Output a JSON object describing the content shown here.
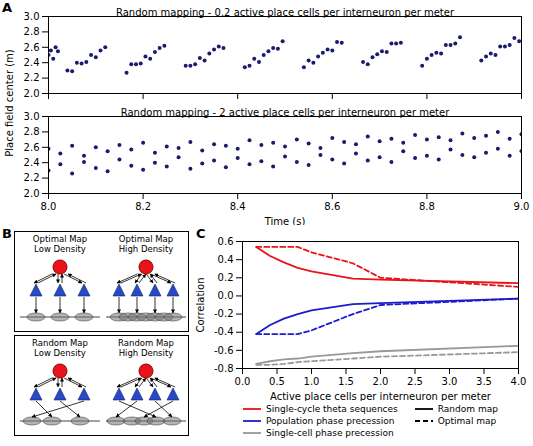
{
  "chart_data": [
    {
      "panel": "A",
      "type": "scatter",
      "title": "Random mapping - 0.2 active place cells per interneuron per meter",
      "ylabel": "Place field center (m)",
      "color": "#1a1a70",
      "tick_labels": "y",
      "xlim": [
        8,
        9
      ],
      "ylim": [
        2,
        3
      ],
      "xticks": [
        {
          "value": 8,
          "label": "8.0"
        },
        8.2,
        8.4,
        8.6,
        8.8,
        {
          "value": 9,
          "label": "9.0"
        }
      ],
      "yticks": [
        {
          "value": 2,
          "label": "2.0"
        },
        2.2,
        2.4,
        2.6,
        2.8,
        {
          "value": 3,
          "label": "3.0"
        }
      ],
      "x": [
        8,
        8.005,
        8.01,
        8.015,
        8.02,
        8.04,
        8.05,
        8.06,
        8.07,
        8.08,
        8.09,
        8.1,
        8.11,
        8.12,
        8.165,
        8.175,
        8.185,
        8.195,
        8.205,
        8.215,
        8.225,
        8.235,
        8.245,
        8.29,
        8.3,
        8.31,
        8.32,
        8.33,
        8.34,
        8.35,
        8.36,
        8.37,
        8.415,
        8.425,
        8.435,
        8.445,
        8.455,
        8.465,
        8.475,
        8.485,
        8.495,
        8.54,
        8.55,
        8.56,
        8.57,
        8.58,
        8.59,
        8.6,
        8.61,
        8.62,
        8.665,
        8.675,
        8.685,
        8.695,
        8.705,
        8.715,
        8.725,
        8.735,
        8.745,
        8.79,
        8.8,
        8.81,
        8.82,
        8.83,
        8.84,
        8.85,
        8.86,
        8.87,
        8.915,
        8.925,
        8.935,
        8.945,
        8.955,
        8.965,
        8.975,
        8.985,
        8.995
      ],
      "values": [
        2.5,
        2.56,
        2.45,
        2.6,
        2.55,
        2.3,
        2.29,
        2.4,
        2.39,
        2.41,
        2.5,
        2.47,
        2.56,
        2.6,
        2.27,
        2.38,
        2.38,
        2.39,
        2.48,
        2.45,
        2.54,
        2.59,
        2.62,
        2.36,
        2.36,
        2.38,
        2.46,
        2.43,
        2.52,
        2.57,
        2.61,
        2.59,
        2.34,
        2.36,
        2.45,
        2.41,
        2.5,
        2.55,
        2.59,
        2.58,
        2.68,
        2.34,
        2.43,
        2.4,
        2.48,
        2.53,
        2.57,
        2.56,
        2.67,
        2.66,
        2.41,
        2.38,
        2.47,
        2.51,
        2.55,
        2.54,
        2.65,
        2.65,
        2.66,
        2.36,
        2.45,
        2.5,
        2.53,
        2.52,
        2.63,
        2.63,
        2.65,
        2.73,
        2.43,
        2.48,
        2.52,
        2.5,
        2.61,
        2.61,
        2.63,
        2.72,
        2.68
      ]
    },
    {
      "type": "scatter",
      "title": "Random mapping - 2 active place cells per interneuron per meter",
      "xlabel": "Time (s)",
      "color": "#1a1a70",
      "xlim": [
        8,
        9
      ],
      "ylim": [
        2,
        3
      ],
      "xticks": [
        {
          "value": 8,
          "label": "8.0"
        },
        8.2,
        8.4,
        8.6,
        8.8,
        {
          "value": 9,
          "label": "9.0"
        }
      ],
      "yticks": [
        {
          "value": 2,
          "label": "2.0"
        },
        2.2,
        2.4,
        2.6,
        2.8,
        {
          "value": 3,
          "label": "3.0"
        }
      ],
      "x": [
        8,
        8.025,
        8.05,
        8.075,
        8.1,
        8.125,
        8.15,
        8.175,
        8.2,
        8.225,
        8.25,
        8.275,
        8.3,
        8.325,
        8.35,
        8.375,
        8.4,
        8.425,
        8.45,
        8.475,
        8.5,
        8.525,
        8.55,
        8.575,
        8.6,
        8.625,
        8.65,
        8.675,
        8.7,
        8.725,
        8.75,
        8.775,
        8.8,
        8.825,
        8.85,
        8.875,
        8.9,
        8.925,
        8.95,
        8.975,
        9,
        8,
        8.025,
        8.05,
        8.075,
        8.1,
        8.125,
        8.15,
        8.175,
        8.2,
        8.225,
        8.25,
        8.275,
        8.3,
        8.325,
        8.35,
        8.375,
        8.4,
        8.425,
        8.45,
        8.475,
        8.5,
        8.525,
        8.55,
        8.575,
        8.6,
        8.625,
        8.65,
        8.675,
        8.7,
        8.725,
        8.75,
        8.775,
        8.8,
        8.825,
        8.85,
        8.875,
        8.9,
        8.925,
        8.95,
        8.975,
        9
      ],
      "values": [
        2.3,
        2.38,
        2.26,
        2.41,
        2.33,
        2.29,
        2.44,
        2.36,
        2.31,
        2.4,
        2.35,
        2.47,
        2.32,
        2.39,
        2.43,
        2.34,
        2.46,
        2.38,
        2.42,
        2.35,
        2.48,
        2.41,
        2.37,
        2.5,
        2.44,
        2.39,
        2.52,
        2.43,
        2.47,
        2.41,
        2.55,
        2.46,
        2.49,
        2.44,
        2.57,
        2.5,
        2.47,
        2.53,
        2.58,
        2.49,
        2.55,
        2.58,
        2.52,
        2.62,
        2.49,
        2.6,
        2.55,
        2.63,
        2.57,
        2.66,
        2.53,
        2.61,
        2.59,
        2.67,
        2.56,
        2.64,
        2.62,
        2.58,
        2.69,
        2.63,
        2.66,
        2.61,
        2.7,
        2.65,
        2.59,
        2.72,
        2.67,
        2.64,
        2.74,
        2.68,
        2.71,
        2.66,
        2.76,
        2.7,
        2.73,
        2.69,
        2.78,
        2.72,
        2.75,
        2.8,
        2.71,
        2.77
      ]
    },
    {
      "panel": "C",
      "type": "line",
      "xlabel": "Active place cells per interneuron per meter",
      "ylabel": "Correlation",
      "legend": "bottom",
      "xlim": [
        0,
        4
      ],
      "ylim": [
        -0.8,
        0.6
      ],
      "xticks": [
        {
          "value": 0,
          "label": "0.0"
        },
        0.5,
        {
          "value": 1,
          "label": "1.0"
        },
        1.5,
        {
          "value": 2,
          "label": "2.0"
        },
        2.5,
        {
          "value": 3,
          "label": "3.0"
        },
        3.5,
        {
          "value": 4,
          "label": "4.0"
        }
      ],
      "yticks": [
        -0.8,
        -0.6,
        -0.4,
        -0.2,
        {
          "value": 0,
          "label": "0.0"
        },
        0.2,
        0.4,
        0.6
      ],
      "x": [
        0.2,
        0.4,
        0.6,
        0.8,
        1,
        1.6,
        2,
        4
      ],
      "series": [
        {
          "name": "Single-cycle theta sequences",
          "map": "Random map",
          "color": "#e8141a",
          "line_style": "solid",
          "values": [
            0.54,
            0.44,
            0.37,
            0.31,
            0.27,
            0.19,
            0.18,
            0.14
          ]
        },
        {
          "name": "Single-cycle theta sequences",
          "map": "Optimal map",
          "color": "#e8141a",
          "line_style": "dashed",
          "values": [
            0.54,
            0.54,
            0.54,
            0.54,
            0.48,
            0.36,
            0.2,
            0.1
          ]
        },
        {
          "name": "Population phase precession",
          "map": "Random map",
          "color": "#1c1ccc",
          "line_style": "solid",
          "values": [
            -0.42,
            -0.32,
            -0.25,
            -0.2,
            -0.16,
            -0.09,
            -0.08,
            -0.03
          ]
        },
        {
          "name": "Population phase precession",
          "map": "Optimal map",
          "color": "#1c1ccc",
          "line_style": "dashed",
          "values": [
            -0.42,
            -0.42,
            -0.42,
            -0.42,
            -0.38,
            -0.2,
            -0.1,
            -0.03
          ]
        },
        {
          "name": "Single-cell phase precession",
          "map": "Random map",
          "color": "#999999",
          "line_style": "solid",
          "values": [
            -0.75,
            -0.72,
            -0.7,
            -0.69,
            -0.67,
            -0.63,
            -0.61,
            -0.55
          ]
        },
        {
          "name": "Single-cell phase precession",
          "map": "Optimal map",
          "color": "#999999",
          "line_style": "dashed",
          "values": [
            -0.76,
            -0.76,
            -0.75,
            -0.73,
            -0.72,
            -0.69,
            -0.67,
            -0.62
          ]
        }
      ]
    }
  ],
  "diagram": {
    "panel": "B",
    "maps": [
      {
        "title": [
          "Optimal Map",
          "Low Density"
        ]
      },
      {
        "title": [
          "Optimal Map",
          "High Density"
        ]
      },
      {
        "title": [
          "Random Map",
          "Low Density"
        ]
      },
      {
        "title": [
          "Random Map",
          "High Density"
        ]
      }
    ]
  }
}
